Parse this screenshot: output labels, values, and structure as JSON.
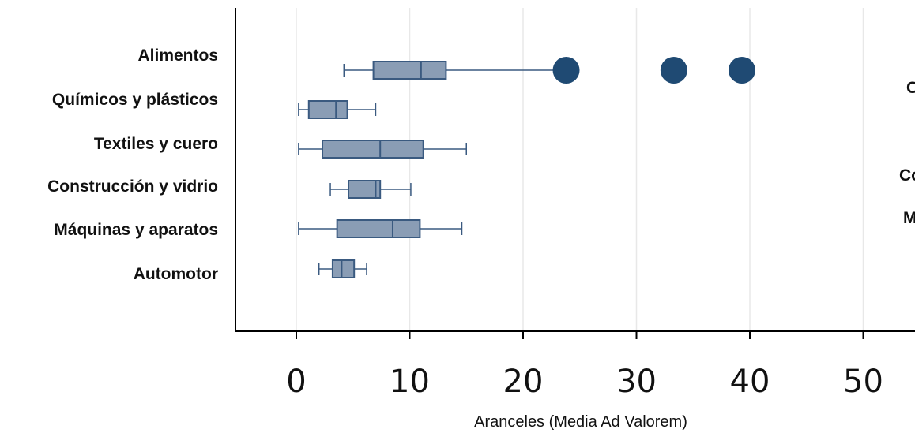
{
  "chart_data": {
    "type": "boxplot",
    "xlabel": "Aranceles (Media Ad Valorem)",
    "xlim": [
      -5,
      55
    ],
    "xticks": [
      0,
      10,
      20,
      30,
      40,
      50
    ],
    "tick_labels": [
      "0",
      "10",
      "20",
      "30",
      "40",
      "50"
    ],
    "grid": "vertical",
    "colors": {
      "box_fill": "#8a9db5",
      "box_edge": "#3a5a80",
      "outlier": "#1f4a73",
      "grid": "#e8e8e8",
      "axis": "#000000"
    },
    "series": [
      {
        "name": "Alimentos",
        "whisker_low": 4.2,
        "q1": 6.8,
        "median": 11.0,
        "q3": 13.2,
        "whisker_high": 22.8,
        "outliers": [
          23.8,
          33.3,
          39.3
        ]
      },
      {
        "name": "Químicos y plásticos",
        "whisker_low": 0.2,
        "q1": 1.1,
        "median": 3.5,
        "q3": 4.5,
        "whisker_high": 7.0,
        "outliers": []
      },
      {
        "name": "Textiles y cuero",
        "whisker_low": 0.2,
        "q1": 2.3,
        "median": 7.4,
        "q3": 11.2,
        "whisker_high": 15.0,
        "outliers": []
      },
      {
        "name": "Construcción y vidrio",
        "whisker_low": 3.0,
        "q1": 4.6,
        "median": 7.0,
        "q3": 7.4,
        "whisker_high": 10.1,
        "outliers": []
      },
      {
        "name": "Máquinas y aparatos",
        "whisker_low": 0.2,
        "q1": 3.6,
        "median": 8.5,
        "q3": 10.9,
        "whisker_high": 14.6,
        "outliers": []
      },
      {
        "name": "Automotor",
        "whisker_low": 2.0,
        "q1": 3.2,
        "median": 4.0,
        "q3": 5.1,
        "whisker_high": 6.2,
        "outliers": []
      }
    ],
    "clipped_labels": [
      "C",
      "Co",
      "M"
    ]
  }
}
